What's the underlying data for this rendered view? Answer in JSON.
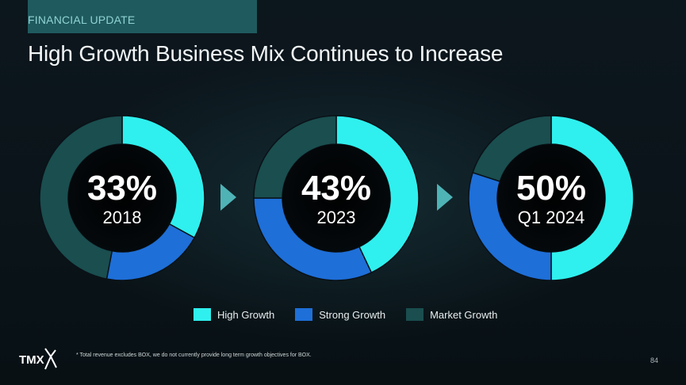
{
  "header": {
    "section": "FINANCIAL UPDATE",
    "title": "High Growth Business Mix Continues to Increase"
  },
  "colors": {
    "high_growth": "#2ff0ee",
    "strong_growth": "#1e6fd8",
    "market_growth": "#1a4e4f"
  },
  "chart_data": [
    {
      "type": "pie",
      "center_value": "33%",
      "center_label": "2018",
      "slices": [
        {
          "name": "High Growth",
          "value": 33
        },
        {
          "name": "Strong Growth",
          "value": 20
        },
        {
          "name": "Market Growth",
          "value": 47
        }
      ]
    },
    {
      "type": "pie",
      "center_value": "43%",
      "center_label": "2023",
      "slices": [
        {
          "name": "High Growth",
          "value": 43
        },
        {
          "name": "Strong Growth",
          "value": 32
        },
        {
          "name": "Market Growth",
          "value": 25
        }
      ]
    },
    {
      "type": "pie",
      "center_value": "50%",
      "center_label": "Q1 2024",
      "slices": [
        {
          "name": "High Growth",
          "value": 50
        },
        {
          "name": "Strong Growth",
          "value": 30
        },
        {
          "name": "Market Growth",
          "value": 20
        }
      ]
    }
  ],
  "legend": {
    "items": [
      "High Growth",
      "Strong Growth",
      "Market Growth"
    ]
  },
  "footer": {
    "footnote": "* Total revenue excludes BOX, we do not currently provide long term growth objectives for BOX.",
    "page_number": "84",
    "logo_text": "TMX"
  }
}
